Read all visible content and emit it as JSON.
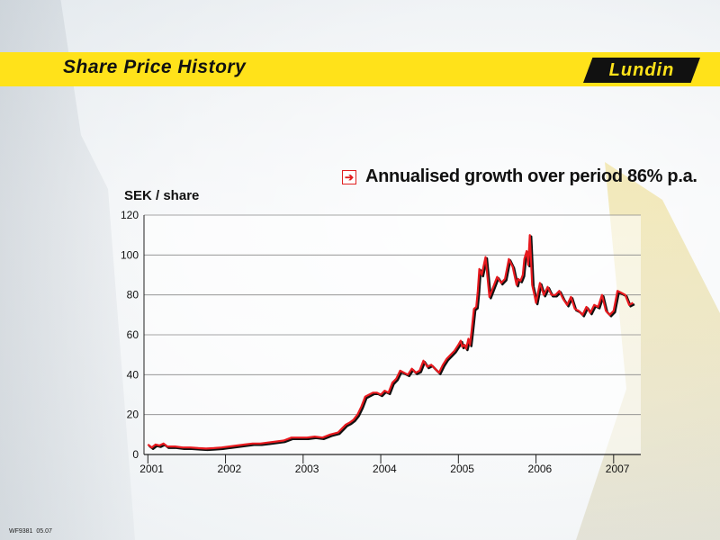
{
  "header": {
    "title": "Share Price History",
    "logo_text": "Lundin"
  },
  "annotation": "Annualised growth over period 86% p.a.",
  "footer": {
    "code": "WF9381",
    "date": "05.07"
  },
  "chart_data": {
    "type": "line",
    "title": "",
    "xlabel": "",
    "ylabel": "SEK / share",
    "ylim": [
      0,
      120
    ],
    "yticks": [
      0,
      20,
      40,
      60,
      80,
      100,
      120
    ],
    "xlim": [
      2000.9,
      2007.3
    ],
    "xtick_labels": [
      "2001",
      "2002",
      "2003",
      "2004",
      "2005",
      "2006",
      "2007"
    ],
    "grid": true,
    "line_color": "#e8191e",
    "series": [
      {
        "x": [
          2000.95,
          2001.0,
          2001.05,
          2001.1,
          2001.15,
          2001.2,
          2001.3,
          2001.4,
          2001.5,
          2001.6,
          2001.7,
          2001.8,
          2001.9,
          2002.0,
          2002.1,
          2002.2,
          2002.3,
          2002.4,
          2002.5,
          2002.6,
          2002.7,
          2002.8,
          2002.9,
          2003.0,
          2003.1,
          2003.2,
          2003.3,
          2003.4,
          2003.45,
          2003.5,
          2003.55,
          2003.6,
          2003.65,
          2003.7,
          2003.75,
          2003.8,
          2003.85,
          2003.9,
          2003.95,
          2004.0,
          2004.05,
          2004.1,
          2004.15,
          2004.2,
          2004.3,
          2004.35,
          2004.4,
          2004.45,
          2004.5,
          2004.55,
          2004.6,
          2004.65,
          2004.7,
          2004.75,
          2004.8,
          2004.85,
          2004.9,
          2004.95,
          2004.98,
          2005.0,
          2005.03,
          2005.05,
          2005.08,
          2005.1,
          2005.12,
          2005.15,
          2005.18,
          2005.2,
          2005.22,
          2005.25,
          2005.3,
          2005.35,
          2005.4,
          2005.45,
          2005.5,
          2005.55,
          2005.6,
          2005.65,
          2005.7,
          2005.72,
          2005.75,
          2005.78,
          2005.8,
          2005.83,
          2005.85,
          2005.87,
          2005.9,
          2005.93,
          2005.95,
          2006.0,
          2006.05,
          2006.1,
          2006.15,
          2006.2,
          2006.25,
          2006.3,
          2006.35,
          2006.4,
          2006.45,
          2006.5,
          2006.55,
          2006.6,
          2006.65,
          2006.7,
          2006.75,
          2006.8,
          2006.85,
          2006.9,
          2006.95,
          2007.0,
          2007.05,
          2007.1,
          2007.15,
          2007.2
        ],
        "y": [
          5,
          3.5,
          5,
          4.5,
          5.5,
          4,
          4,
          3.5,
          3.5,
          3.2,
          3,
          3.2,
          3.5,
          4,
          4.5,
          5,
          5.5,
          5.5,
          6,
          6.5,
          7,
          8.5,
          8.5,
          8.5,
          9,
          8.5,
          10,
          11,
          13,
          15,
          16,
          17.5,
          20,
          24,
          29,
          30,
          31,
          31,
          30,
          32,
          31,
          36,
          38,
          42,
          40,
          43,
          41,
          42,
          47,
          44,
          45,
          43,
          41,
          45,
          48,
          50,
          52,
          55,
          57,
          54,
          55,
          53,
          58,
          55,
          62,
          73,
          74,
          82,
          93,
          90,
          99,
          79,
          84,
          89,
          86,
          88,
          98,
          94,
          85,
          88,
          87,
          90,
          98,
          102,
          95,
          110,
          85,
          80,
          76,
          86,
          80,
          84,
          80,
          80,
          82,
          78,
          75,
          79,
          73,
          72,
          70,
          74,
          71,
          75,
          74,
          80,
          72,
          70,
          72,
          82,
          81,
          80,
          75,
          76
        ]
      }
    ]
  }
}
